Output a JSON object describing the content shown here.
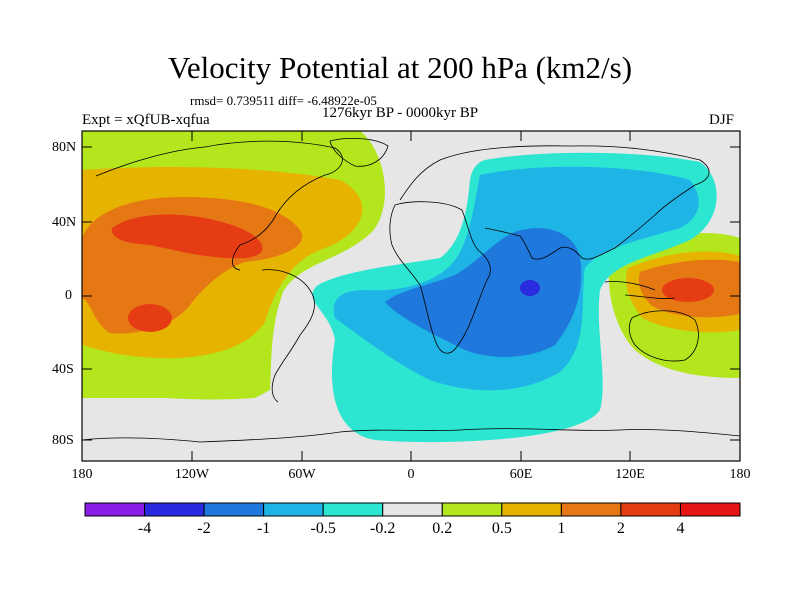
{
  "title": "Velocity Potential at 200 hPa (km2/s)",
  "stats": "rmsd= 0.739511 diff= -6.48922e-05",
  "experiment": "Expt = xQfUB-xqfua",
  "period": "1276kyr BP - 0000kyr BP",
  "season": "DJF",
  "lat_labels": [
    "80N",
    "40N",
    "0",
    "40S",
    "80S"
  ],
  "lon_labels": [
    "180",
    "120W",
    "60W",
    "0",
    "60E",
    "120E",
    "180"
  ],
  "colorbar": {
    "labels": [
      "-4",
      "-2",
      "-1",
      "-0.5",
      "-0.2",
      "0.2",
      "0.5",
      "1",
      "2",
      "4"
    ],
    "colors": [
      "#8a1ee6",
      "#2a2ae0",
      "#1f78dc",
      "#1fb4e6",
      "#2de6d2",
      "#e6e6e6",
      "#b4e61e",
      "#e6b400",
      "#e67814",
      "#e63c14",
      "#e61414"
    ]
  }
}
